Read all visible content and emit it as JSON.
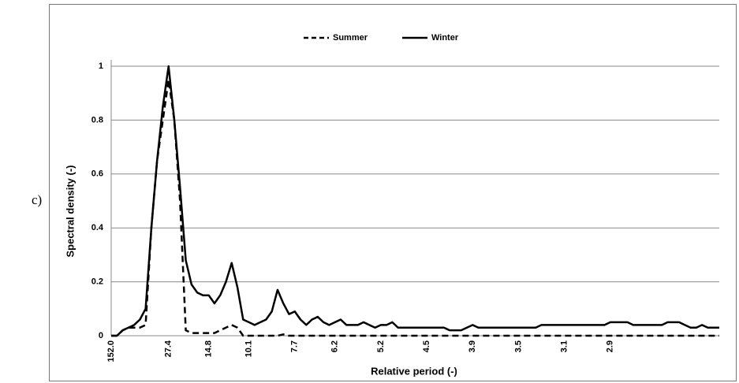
{
  "panel_label": "c)",
  "chart_data": {
    "type": "line",
    "x_label": "Relative period (-)",
    "y_label": "Spectral density (-)",
    "legend": "top",
    "grid": true,
    "ylim": [
      0,
      1
    ],
    "yticks": [
      0,
      0.2,
      0.4,
      0.6,
      0.8,
      1
    ],
    "categories": [
      "152.0",
      null,
      null,
      null,
      null,
      null,
      null,
      null,
      null,
      null,
      "27.4",
      null,
      null,
      null,
      null,
      null,
      null,
      "14.8",
      null,
      null,
      null,
      null,
      null,
      null,
      "10.1",
      null,
      null,
      null,
      null,
      null,
      null,
      null,
      "7.7",
      null,
      null,
      null,
      null,
      null,
      null,
      "6.2",
      null,
      null,
      null,
      null,
      null,
      null,
      null,
      "5.2",
      null,
      null,
      null,
      null,
      null,
      null,
      null,
      "4.5",
      null,
      null,
      null,
      null,
      null,
      null,
      null,
      "3.9",
      null,
      null,
      null,
      null,
      null,
      null,
      null,
      "3.5",
      null,
      null,
      null,
      null,
      null,
      null,
      null,
      "3.1",
      null,
      null,
      null,
      null,
      null,
      null,
      null,
      "2.9",
      null,
      null,
      null,
      null,
      null,
      null,
      null,
      null,
      null,
      null,
      null,
      null,
      null,
      null,
      null,
      null,
      null,
      null,
      null
    ],
    "series": [
      {
        "name": "Summer",
        "color": "#000000",
        "dash": true,
        "values": [
          0,
          0,
          0.02,
          0.03,
          0.03,
          0.03,
          0.04,
          0.4,
          0.65,
          0.8,
          0.95,
          0.8,
          0.5,
          0.02,
          0.01,
          0.01,
          0.01,
          0.01,
          0.01,
          0.02,
          0.03,
          0.04,
          0.03,
          0,
          0,
          0,
          0,
          0,
          0,
          0,
          0.005,
          0,
          0,
          0,
          0,
          0,
          0,
          0,
          0,
          0,
          0,
          0,
          0,
          0,
          0,
          0,
          0,
          0,
          0,
          0,
          0,
          0,
          0,
          0,
          0,
          0,
          0,
          0,
          0,
          0,
          0,
          0,
          0,
          0,
          0,
          0,
          0,
          0,
          0,
          0,
          0,
          0,
          0,
          0,
          0,
          0,
          0,
          0,
          0,
          0,
          0,
          0,
          0,
          0,
          0,
          0,
          0,
          0,
          0,
          0,
          0,
          0,
          0,
          0,
          0,
          0,
          0,
          0,
          0,
          0,
          0,
          0,
          0,
          0,
          0,
          0,
          0
        ]
      },
      {
        "name": "Winter",
        "color": "#000000",
        "dash": false,
        "values": [
          0,
          0,
          0.02,
          0.03,
          0.04,
          0.06,
          0.1,
          0.4,
          0.65,
          0.85,
          1,
          0.8,
          0.55,
          0.28,
          0.19,
          0.16,
          0.15,
          0.15,
          0.12,
          0.15,
          0.2,
          0.27,
          0.18,
          0.06,
          0.05,
          0.04,
          0.05,
          0.06,
          0.09,
          0.17,
          0.12,
          0.08,
          0.09,
          0.06,
          0.04,
          0.06,
          0.07,
          0.05,
          0.04,
          0.05,
          0.06,
          0.04,
          0.04,
          0.04,
          0.05,
          0.04,
          0.03,
          0.04,
          0.04,
          0.05,
          0.03,
          0.03,
          0.03,
          0.03,
          0.03,
          0.03,
          0.03,
          0.03,
          0.03,
          0.02,
          0.02,
          0.02,
          0.03,
          0.04,
          0.03,
          0.03,
          0.03,
          0.03,
          0.03,
          0.03,
          0.03,
          0.03,
          0.03,
          0.03,
          0.03,
          0.04,
          0.04,
          0.04,
          0.04,
          0.04,
          0.04,
          0.04,
          0.04,
          0.04,
          0.04,
          0.04,
          0.04,
          0.05,
          0.05,
          0.05,
          0.05,
          0.04,
          0.04,
          0.04,
          0.04,
          0.04,
          0.04,
          0.05,
          0.05,
          0.05,
          0.04,
          0.03,
          0.03,
          0.04,
          0.03,
          0.03,
          0.03
        ]
      }
    ]
  }
}
